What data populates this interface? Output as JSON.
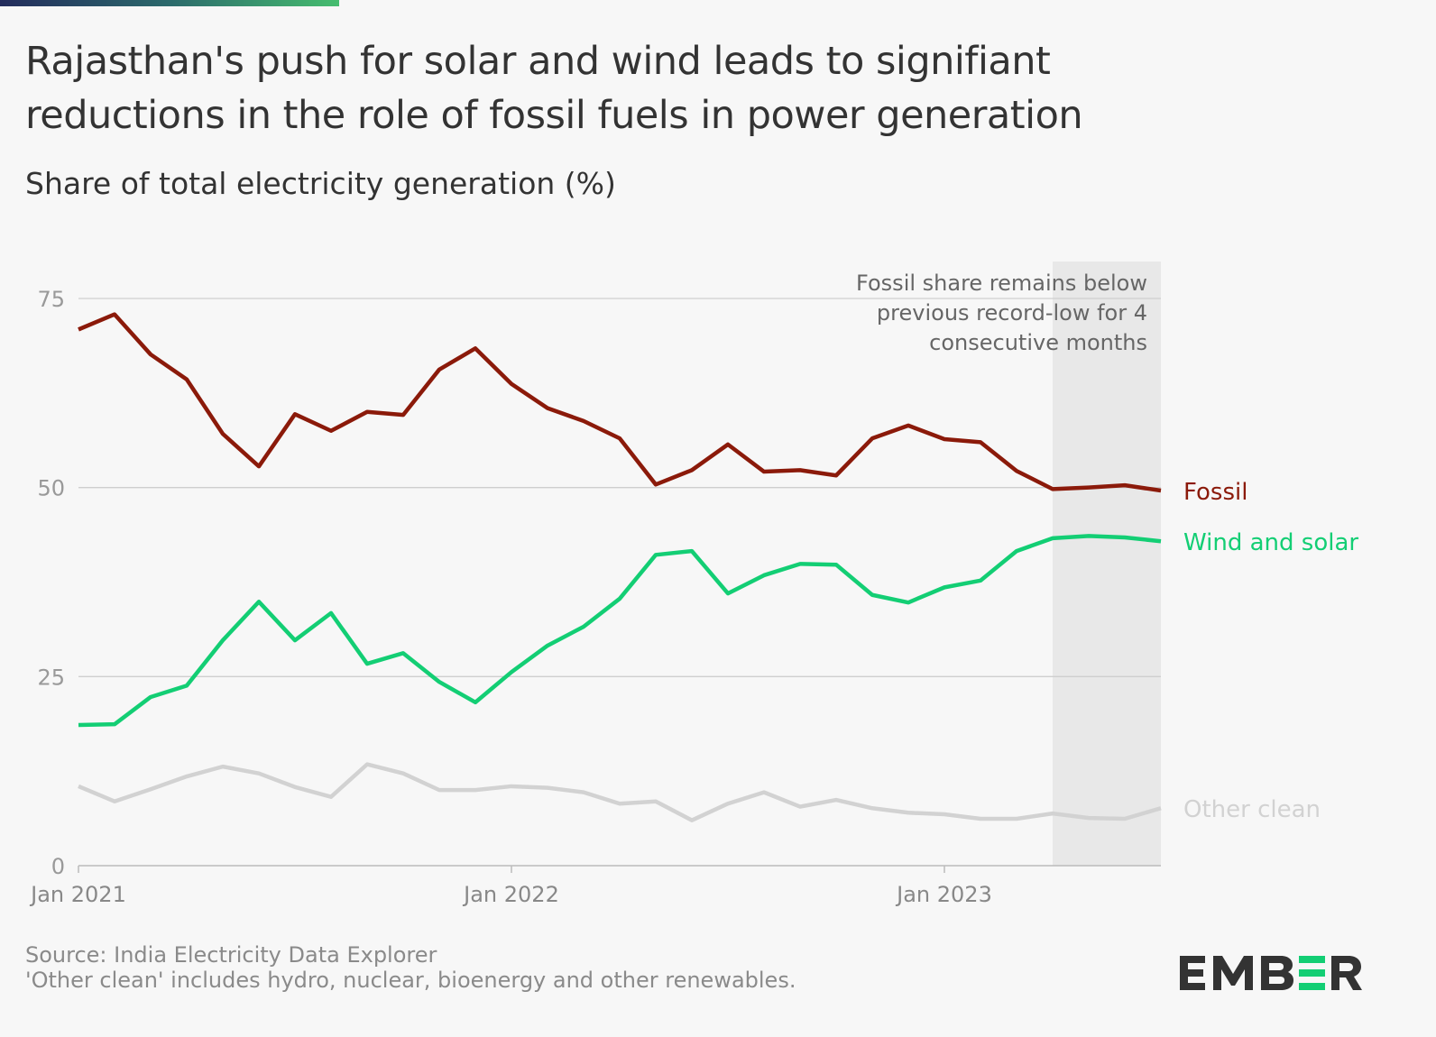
{
  "title_lines": [
    "Rajasthan's push for solar and wind leads to signifiant",
    "reductions in the role of fossil fuels in power generation"
  ],
  "subtitle": "Share of total electricity generation (%)",
  "chart_data": {
    "type": "line",
    "title": "Rajasthan's push for solar and wind leads to signifiant reductions in the role of fossil fuels in power generation",
    "subtitle": "Share of total electricity generation (%)",
    "x": [
      "2021-01",
      "2021-02",
      "2021-03",
      "2021-04",
      "2021-05",
      "2021-06",
      "2021-07",
      "2021-08",
      "2021-09",
      "2021-10",
      "2021-11",
      "2021-12",
      "2022-01",
      "2022-02",
      "2022-03",
      "2022-04",
      "2022-05",
      "2022-06",
      "2022-07",
      "2022-08",
      "2022-09",
      "2022-10",
      "2022-11",
      "2022-12",
      "2023-01",
      "2023-02",
      "2023-03",
      "2023-04",
      "2023-05",
      "2023-06",
      "2023-07"
    ],
    "x_ticks": [
      "Jan 2021",
      "Jan 2022",
      "Jan 2023"
    ],
    "y_ticks": [
      0,
      25,
      50,
      75
    ],
    "ylim": [
      0,
      80
    ],
    "grid": true,
    "legend": "direct labels at right",
    "series": [
      {
        "name": "Fossil",
        "color": "#8b1a0a",
        "values": [
          70.9,
          72.9,
          67.6,
          64.3,
          57.1,
          52.8,
          59.7,
          57.5,
          60.0,
          59.6,
          65.6,
          68.4,
          63.7,
          60.5,
          58.8,
          56.5,
          50.4,
          52.3,
          55.7,
          52.1,
          52.3,
          51.6,
          56.5,
          58.2,
          56.4,
          56.0,
          52.2,
          49.8,
          50.0,
          50.3,
          49.6
        ]
      },
      {
        "name": "Wind and solar",
        "color": "#13ce74",
        "values": [
          18.6,
          18.7,
          22.3,
          23.8,
          29.8,
          34.9,
          29.8,
          33.4,
          26.7,
          28.1,
          24.3,
          21.6,
          25.6,
          29.1,
          31.6,
          35.3,
          41.1,
          41.6,
          36.0,
          38.4,
          39.9,
          39.8,
          35.8,
          34.8,
          36.8,
          37.7,
          41.6,
          43.3,
          43.6,
          43.4,
          42.9
        ]
      },
      {
        "name": "Other clean",
        "color": "#d2d2d2",
        "values": [
          10.5,
          8.5,
          10.1,
          11.8,
          13.1,
          12.2,
          10.4,
          9.1,
          13.4,
          12.2,
          10.0,
          10.0,
          10.5,
          10.3,
          9.7,
          8.2,
          8.5,
          6.0,
          8.2,
          9.7,
          7.8,
          8.7,
          7.6,
          7.0,
          6.8,
          6.2,
          6.2,
          6.9,
          6.3,
          6.2,
          7.6
        ]
      }
    ],
    "highlight": {
      "from": "2023-04",
      "to": "2023-07",
      "color": "#e8e8e8"
    },
    "annotation": [
      "Fossil share remains below",
      "previous record-low for 4",
      "consecutive months"
    ]
  },
  "footer": {
    "source": "Source: India Electricity Data Explorer",
    "note": "'Other clean' includes hydro, nuclear, bioenergy and other renewables."
  },
  "logo": {
    "text": "EMBER",
    "accent": "#13ce74"
  }
}
